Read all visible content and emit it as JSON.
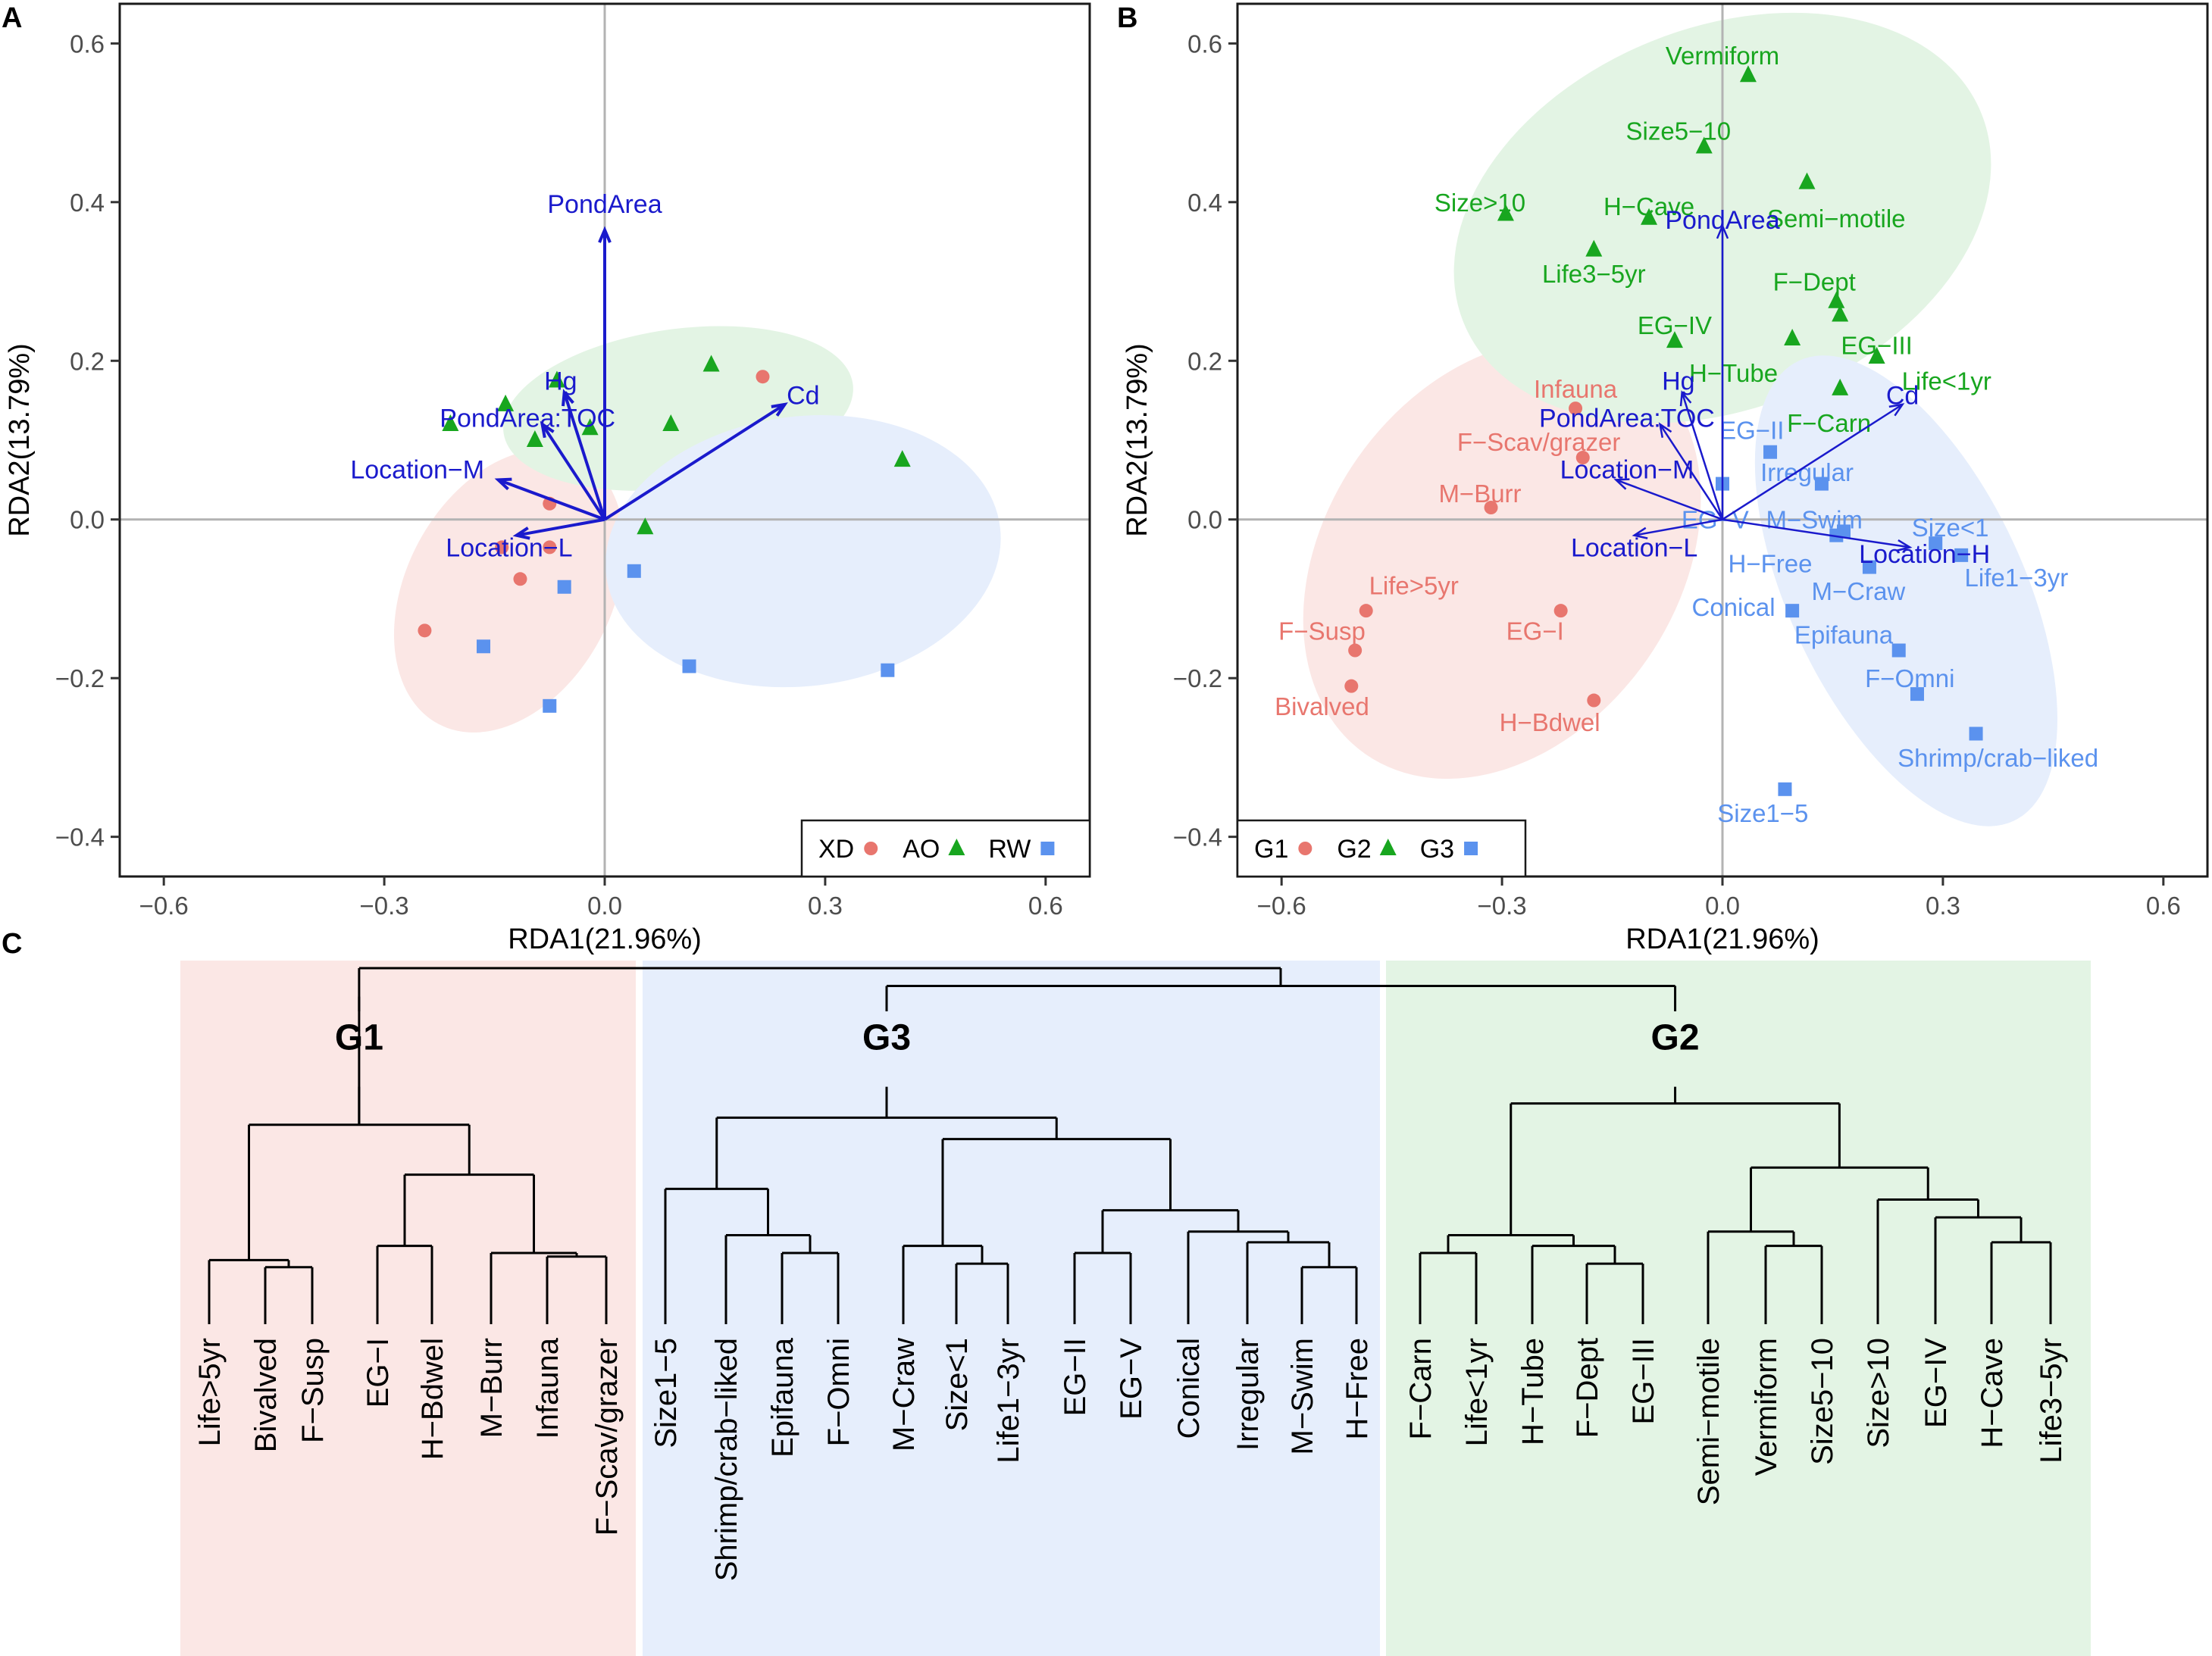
{
  "panel_labels": {
    "a": "A",
    "b": "B",
    "c": "C"
  },
  "colors": {
    "red": "#E8766E",
    "green": "#18A61F",
    "blue": "#5B92EE",
    "arrow": "#1A1ACC",
    "fill_red": "#FBE7E5",
    "fill_green": "#E3F4E4",
    "fill_blue": "#E6EEFC"
  },
  "chart_data": [
    {
      "panel": "A",
      "type": "scatter",
      "xlabel": "RDA1(21.96%)",
      "ylabel": "RDA2(13.79%)",
      "xlim": [
        -0.66,
        0.66
      ],
      "ylim": [
        -0.45,
        0.65
      ],
      "x_ticks": [
        -0.6,
        -0.3,
        0.0,
        0.3,
        0.6
      ],
      "x_tick_labels": [
        "−0.6",
        "−0.3",
        "0.0",
        "0.3",
        "0.6"
      ],
      "y_ticks": [
        -0.4,
        -0.2,
        0.0,
        0.2,
        0.4,
        0.6
      ],
      "y_tick_labels": [
        "−0.4",
        "−0.2",
        "0.0",
        "0.2",
        "0.4",
        "0.6"
      ],
      "legend": {
        "placement": "bottom-right",
        "entries": [
          {
            "label": "XD",
            "marker": "circle",
            "color": "#E8766E"
          },
          {
            "label": "AO",
            "marker": "triangle",
            "color": "#18A61F"
          },
          {
            "label": "RW",
            "marker": "square",
            "color": "#5B92EE"
          }
        ]
      },
      "series": [
        {
          "name": "XD",
          "marker": "circle",
          "color": "#E8766E",
          "points": [
            [
              -0.245,
              -0.14
            ],
            [
              -0.115,
              -0.075
            ],
            [
              -0.075,
              0.02
            ],
            [
              -0.075,
              -0.035
            ],
            [
              -0.14,
              -0.035
            ],
            [
              0.215,
              0.18
            ]
          ]
        },
        {
          "name": "AO",
          "marker": "triangle",
          "color": "#18A61F",
          "points": [
            [
              -0.21,
              0.12
            ],
            [
              -0.135,
              0.145
            ],
            [
              -0.095,
              0.1
            ],
            [
              -0.065,
              0.175
            ],
            [
              -0.02,
              0.115
            ],
            [
              0.09,
              0.12
            ],
            [
              0.145,
              0.195
            ],
            [
              0.055,
              -0.01
            ],
            [
              0.405,
              0.075
            ]
          ]
        },
        {
          "name": "RW",
          "marker": "square",
          "color": "#5B92EE",
          "points": [
            [
              -0.165,
              -0.16
            ],
            [
              -0.055,
              -0.085
            ],
            [
              -0.075,
              -0.235
            ],
            [
              0.04,
              -0.065
            ],
            [
              0.115,
              -0.185
            ],
            [
              0.385,
              -0.19
            ]
          ]
        }
      ],
      "ellipses": [
        {
          "group": "XD",
          "color": "#FBE7E5",
          "cx": -0.13,
          "cy": -0.09,
          "rx": 0.14,
          "ry": 0.19,
          "angle": 28
        },
        {
          "group": "AO",
          "color": "#E3F4E4",
          "cx": 0.1,
          "cy": 0.14,
          "rx": 0.24,
          "ry": 0.1,
          "angle": -8
        },
        {
          "group": "RW",
          "color": "#E6EEFC",
          "cx": 0.27,
          "cy": -0.04,
          "rx": 0.27,
          "ry": 0.17,
          "angle": -7
        }
      ],
      "arrows": [
        {
          "label": "PondArea",
          "x": 0.0,
          "y": 0.365,
          "lx": 0.0,
          "ly": 0.398,
          "anchor": "middle"
        },
        {
          "label": "Hg",
          "x": -0.055,
          "y": 0.16,
          "lx": -0.06,
          "ly": 0.175,
          "anchor": "middle"
        },
        {
          "label": "PondArea:TOC",
          "x": -0.085,
          "y": 0.12,
          "lx": -0.105,
          "ly": 0.128,
          "anchor": "middle"
        },
        {
          "label": "Location−M",
          "x": -0.145,
          "y": 0.05,
          "lx": -0.255,
          "ly": 0.063,
          "anchor": "middle"
        },
        {
          "label": "Location−L",
          "x": -0.12,
          "y": -0.02,
          "lx": -0.13,
          "ly": -0.035,
          "anchor": "middle"
        },
        {
          "label": "Cd",
          "x": 0.245,
          "y": 0.145,
          "lx": 0.27,
          "ly": 0.157,
          "anchor": "middle"
        }
      ]
    },
    {
      "panel": "B",
      "type": "scatter",
      "xlabel": "RDA1(21.96%)",
      "ylabel": "RDA2(13.79%)",
      "xlim": [
        -0.66,
        0.66
      ],
      "ylim": [
        -0.45,
        0.65
      ],
      "x_ticks": [
        -0.6,
        -0.3,
        0.0,
        0.3,
        0.6
      ],
      "x_tick_labels": [
        "−0.6",
        "−0.3",
        "0.0",
        "0.3",
        "0.6"
      ],
      "y_ticks": [
        -0.4,
        -0.2,
        0.0,
        0.2,
        0.4,
        0.6
      ],
      "y_tick_labels": [
        "−0.4",
        "−0.2",
        "0.0",
        "0.2",
        "0.4",
        "0.6"
      ],
      "legend": {
        "placement": "bottom-left",
        "entries": [
          {
            "label": "G1",
            "marker": "circle",
            "color": "#E8766E"
          },
          {
            "label": "G2",
            "marker": "triangle",
            "color": "#18A61F"
          },
          {
            "label": "G3",
            "marker": "square",
            "color": "#5B92EE"
          }
        ]
      },
      "series": [
        {
          "name": "G1",
          "marker": "circle",
          "color": "#E8766E",
          "points": [
            {
              "label": "Infauna",
              "x": -0.2,
              "y": 0.14,
              "lx": -0.2,
              "ly": 0.165
            },
            {
              "label": "F−Scav/grazer",
              "x": -0.19,
              "y": 0.078,
              "lx": -0.25,
              "ly": 0.098
            },
            {
              "label": "M−Burr",
              "x": -0.315,
              "y": 0.015,
              "lx": -0.33,
              "ly": 0.033
            },
            {
              "label": "Life>5yr",
              "x": -0.485,
              "y": -0.115,
              "lx": -0.42,
              "ly": -0.083
            },
            {
              "label": "F−Susp",
              "x": -0.5,
              "y": -0.165,
              "lx": -0.545,
              "ly": -0.14
            },
            {
              "label": "Bivalved",
              "x": -0.505,
              "y": -0.21,
              "lx": -0.545,
              "ly": -0.235
            },
            {
              "label": "EG−I",
              "x": -0.22,
              "y": -0.115,
              "lx": -0.255,
              "ly": -0.14
            },
            {
              "label": "H−Bdwel",
              "x": -0.175,
              "y": -0.228,
              "lx": -0.235,
              "ly": -0.255
            }
          ]
        },
        {
          "name": "G2",
          "marker": "triangle",
          "color": "#18A61F",
          "points": [
            {
              "label": "Vermiform",
              "x": 0.035,
              "y": 0.56,
              "lx": 0.0,
              "ly": 0.585
            },
            {
              "label": "Size5−10",
              "x": -0.025,
              "y": 0.47,
              "lx": -0.06,
              "ly": 0.49
            },
            {
              "label": "Size>10",
              "x": -0.295,
              "y": 0.385,
              "lx": -0.33,
              "ly": 0.4
            },
            {
              "label": "H−Cave",
              "x": -0.1,
              "y": 0.38,
              "lx": -0.1,
              "ly": 0.395
            },
            {
              "label": "Semi−motile",
              "x": 0.115,
              "y": 0.425,
              "lx": 0.155,
              "ly": 0.38
            },
            {
              "label": "Life3−5yr",
              "x": -0.175,
              "y": 0.34,
              "lx": -0.175,
              "ly": 0.31
            },
            {
              "label": "F−Dept",
              "x": 0.155,
              "y": 0.275,
              "lx": 0.125,
              "ly": 0.3
            },
            {
              "label": "EG−IV",
              "x": -0.065,
              "y": 0.225,
              "lx": -0.065,
              "ly": 0.245
            },
            {
              "label": "EG−III",
              "x": 0.095,
              "y": 0.228,
              "lx": 0.21,
              "ly": 0.22
            },
            {
              "label": "H−Tube",
              "x": 0.16,
              "y": 0.258,
              "lx": 0.015,
              "ly": 0.185
            },
            {
              "label": "Life<1yr",
              "x": 0.21,
              "y": 0.205,
              "lx": 0.305,
              "ly": 0.175
            },
            {
              "label": "F−Carn",
              "x": 0.16,
              "y": 0.165,
              "lx": 0.145,
              "ly": 0.122
            }
          ]
        },
        {
          "name": "G3",
          "marker": "square",
          "color": "#5B92EE",
          "points": [
            {
              "label": "EG−II",
              "x": 0.065,
              "y": 0.085,
              "lx": 0.04,
              "ly": 0.113
            },
            {
              "label": "Irregular",
              "x": 0.135,
              "y": 0.045,
              "lx": 0.115,
              "ly": 0.06
            },
            {
              "label": "EG−V",
              "x": 0.0,
              "y": 0.045,
              "lx": -0.01,
              "ly": 0.0
            },
            {
              "label": "M−Swim",
              "x": 0.165,
              "y": -0.015,
              "lx": 0.125,
              "ly": 0.0
            },
            {
              "label": "H−Free",
              "x": 0.155,
              "y": -0.02,
              "lx": 0.065,
              "ly": -0.055
            },
            {
              "label": "Size<1",
              "x": 0.29,
              "y": -0.03,
              "lx": 0.31,
              "ly": -0.01
            },
            {
              "label": "Life1−3yr",
              "x": 0.325,
              "y": -0.045,
              "lx": 0.4,
              "ly": -0.073
            },
            {
              "label": "M−Craw",
              "x": 0.2,
              "y": -0.06,
              "lx": 0.185,
              "ly": -0.09
            },
            {
              "label": "Conical",
              "x": 0.095,
              "y": -0.115,
              "lx": 0.015,
              "ly": -0.11
            },
            {
              "label": "Epifauna",
              "x": 0.24,
              "y": -0.165,
              "lx": 0.165,
              "ly": -0.145
            },
            {
              "label": "F−Omni",
              "x": 0.265,
              "y": -0.22,
              "lx": 0.255,
              "ly": -0.2
            },
            {
              "label": "Shrimp/crab−liked",
              "x": 0.345,
              "y": -0.27,
              "lx": 0.375,
              "ly": -0.3
            },
            {
              "label": "Size1−5",
              "x": 0.085,
              "y": -0.34,
              "lx": 0.055,
              "ly": -0.37
            }
          ]
        }
      ],
      "ellipses": [
        {
          "group": "G1",
          "color": "#FBE7E5",
          "cx": -0.3,
          "cy": -0.05,
          "rx": 0.24,
          "ry": 0.3,
          "angle": 35
        },
        {
          "group": "G2",
          "color": "#E3F4E4",
          "cx": 0.0,
          "cy": 0.38,
          "rx": 0.38,
          "ry": 0.24,
          "angle": -22
        },
        {
          "group": "G3",
          "color": "#E6EEFC",
          "cx": 0.25,
          "cy": -0.09,
          "rx": 0.16,
          "ry": 0.32,
          "angle": -25
        }
      ],
      "arrows": [
        {
          "label": "PondArea",
          "x": 0.0,
          "y": 0.37,
          "lx": 0.0,
          "ly": 0.378,
          "anchor": "middle"
        },
        {
          "label": "Hg",
          "x": -0.055,
          "y": 0.16,
          "lx": -0.06,
          "ly": 0.175,
          "anchor": "middle"
        },
        {
          "label": "PondArea:TOC",
          "x": -0.085,
          "y": 0.12,
          "lx": -0.13,
          "ly": 0.128,
          "anchor": "middle"
        },
        {
          "label": "Location−M",
          "x": -0.145,
          "y": 0.05,
          "lx": -0.13,
          "ly": 0.063,
          "anchor": "middle"
        },
        {
          "label": "Location−L",
          "x": -0.12,
          "y": -0.02,
          "lx": -0.12,
          "ly": -0.035,
          "anchor": "middle"
        },
        {
          "label": "Cd",
          "x": 0.245,
          "y": 0.145,
          "lx": 0.245,
          "ly": 0.157,
          "anchor": "middle"
        },
        {
          "label": "Location−H",
          "x": 0.255,
          "y": -0.035,
          "lx": 0.275,
          "ly": -0.043,
          "anchor": "middle"
        }
      ]
    },
    {
      "panel": "C",
      "type": "dendrogram",
      "groups": [
        {
          "name": "G1",
          "color": "#FBE7E5"
        },
        {
          "name": "G3",
          "color": "#E6EEFC"
        },
        {
          "name": "G2",
          "color": "#E3F4E4"
        }
      ],
      "leaves": [
        "Life>5yr",
        "Bivalved",
        "F−Susp",
        "EG−I",
        "H−Bdwel",
        "M−Burr",
        "Infauna",
        "F−Scav/grazer",
        "Size1−5",
        "Shrimp/crab−liked",
        "Epifauna",
        "F−Omni",
        "M−Craw",
        "Size<1",
        "Life1−3yr",
        "EG−II",
        "EG−V",
        "Conical",
        "Irregular",
        "M−Swim",
        "H−Free",
        "F−Carn",
        "Life<1yr",
        "H−Tube",
        "F−Dept",
        "EG−III",
        "Semi−motile",
        "Vermiform",
        "Size5−10",
        "Size>10",
        "EG−IV",
        "H−Cave",
        "Life3−5yr"
      ],
      "tree": [
        [
          [
            [
              0,
              [
                1,
                2
              ]
            ],
            [
              [
                3,
                4
              ],
              [
                5,
                [
                  6,
                  7
                ]
              ]
            ]
          ]
        ],
        [
          [
            [
              8,
              [
                9,
                [
                  10,
                  11
                ]
              ]
            ],
            [
              [
                12,
                [
                  13,
                  14
                ]
              ],
              [
                [
                  15,
                  16
                ],
                [
                  17,
                  [
                    18,
                    [
                      19,
                      20
                    ]
                  ]
                ]
              ]
            ]
          ],
          [
            [
              [
                21,
                22
              ],
              [
                23,
                [
                  24,
                  25
                ]
              ]
            ],
            [
              [
                26,
                [
                  27,
                  28
                ]
              ],
              [
                29,
                [
                  30,
                  [
                    31,
                    32
                  ]
                ]
              ]
            ]
          ]
        ]
      ],
      "heights": {
        "root": 1.0,
        "g3g2": 0.95,
        "g1": 0.72,
        "g3": 0.72,
        "g2": 0.72,
        "g1_sub": 0.56,
        "g1_a": 0.18,
        "g1_a2": 0.16,
        "g1_b": 0.42,
        "g1_b1": 0.22,
        "g1_b2": 0.42,
        "g1_b2b": 0.2,
        "g1_b2c": 0.19,
        "g3_sub": 0.58,
        "g3_a": 0.38,
        "g3_a2": 0.25,
        "g3_a3": 0.2,
        "g3_b": 0.52,
        "g3_b1": 0.22,
        "g3_b1b": 0.17,
        "g3_b2": 0.32,
        "g3_b2a": 0.2,
        "g3_b2b": 0.26,
        "g3_b2c": 0.23,
        "g3_b2d": 0.16,
        "g2_sub": 0.62,
        "g2_a": 0.25,
        "g2_a1": 0.2,
        "g2_a2": 0.22,
        "g2_a3": 0.17,
        "g2_b": 0.44,
        "g2_b1": 0.26,
        "g2_b1b": 0.22,
        "g2_b2": 0.35,
        "g2_b2b": 0.3,
        "g2_b2c": 0.23
      }
    }
  ]
}
